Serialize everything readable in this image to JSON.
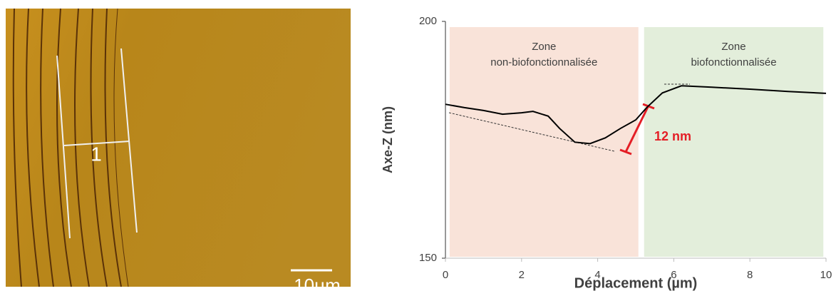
{
  "image": {
    "line_label": "1",
    "scale_label": "10µm"
  },
  "chart_data": {
    "type": "line",
    "x_label": "Déplacement (µm)",
    "y_label": "Axe-Z (nm)",
    "x": [
      0,
      0.5,
      1,
      1.5,
      2,
      2.3,
      2.7,
      3,
      3.4,
      3.8,
      4.2,
      4.6,
      5,
      5.3,
      5.7,
      6.2,
      7,
      8,
      9,
      10
    ],
    "series": [
      {
        "color": "#000000",
        "values": [
          182.5,
          181.8,
          181.2,
          180.4,
          180.7,
          181.0,
          180.0,
          177.4,
          174.5,
          174.2,
          175.4,
          177.4,
          179.2,
          181.9,
          184.9,
          186.4,
          186.1,
          185.7,
          185.2,
          184.8
        ]
      }
    ],
    "xlim": [
      0,
      10
    ],
    "xticks": [
      0,
      2,
      4,
      6,
      8,
      10
    ],
    "ylim": [
      150,
      200
    ],
    "yticks": [
      150,
      200
    ],
    "zones": [
      {
        "start": 0.11,
        "end": 5.07,
        "color": "#f9e3d9",
        "label": [
          "Zone",
          "non-biofonctionnalisée"
        ]
      },
      {
        "start": 5.22,
        "end": 9.93,
        "color": "#e3eedb",
        "label": [
          "Zone",
          "biofonctionnalisée"
        ]
      }
    ],
    "annotation": "12 nm"
  }
}
